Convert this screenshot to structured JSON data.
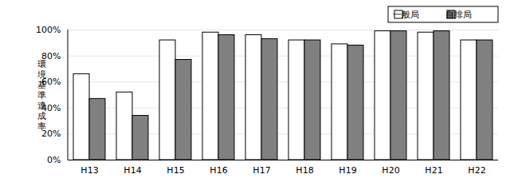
{
  "chart_data": {
    "type": "bar",
    "y_label": "環境基準達成率",
    "categories": [
      "H13",
      "H14",
      "H15",
      "H16",
      "H17",
      "H18",
      "H19",
      "H20",
      "H21",
      "H22"
    ],
    "series": [
      {
        "name": "一般局",
        "color": "#ffffff",
        "values": [
          66,
          52,
          92,
          98,
          96,
          92,
          89,
          99,
          98,
          92
        ]
      },
      {
        "name": "自排局",
        "color": "#808080",
        "values": [
          47,
          34,
          77,
          96,
          93,
          92,
          88,
          99,
          99,
          92
        ]
      }
    ],
    "ylim": [
      0,
      100
    ],
    "yticks": [
      {
        "value": 0,
        "label": "0%"
      },
      {
        "value": 20,
        "label": "20%"
      },
      {
        "value": 40,
        "label": "40%"
      },
      {
        "value": 60,
        "label": "60%"
      },
      {
        "value": 80,
        "label": "80%"
      },
      {
        "value": 100,
        "label": "100%"
      }
    ],
    "grid": true,
    "legend": "top-right"
  }
}
